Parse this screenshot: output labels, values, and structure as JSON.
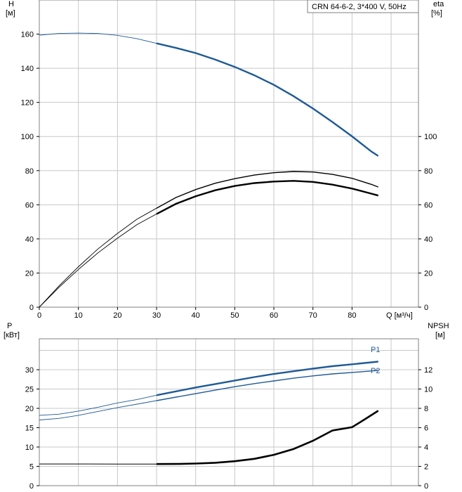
{
  "chart_data": [
    {
      "type": "line",
      "panel": "top",
      "title": "CRN 64-6-2, 3*400 V, 50Hz",
      "xlabel": "Q [м³/ч]",
      "ylabel_left": {
        "name": "H",
        "unit": "[м]"
      },
      "ylabel_right": {
        "name": "eta",
        "unit": "[%]"
      },
      "xlim": [
        0,
        97
      ],
      "ylim_left": [
        0,
        180
      ],
      "ylim_right": [
        0,
        180
      ],
      "x_ticks": [
        "0",
        "10",
        "20",
        "30",
        "40",
        "50",
        "60",
        "70",
        "80"
      ],
      "y_ticks_left": [
        "0",
        "20",
        "40",
        "60",
        "80",
        "100",
        "120",
        "140",
        "160"
      ],
      "y_ticks_right": [
        "0",
        "20",
        "40",
        "60",
        "80",
        "100"
      ],
      "grid": true,
      "series": [
        {
          "role": "H",
          "axis": "left",
          "color": "#1f5a96",
          "points": [
            [
              0,
              159.4
            ],
            [
              5,
              160.4
            ],
            [
              10,
              160.6
            ],
            [
              15,
              160.4
            ],
            [
              20,
              159.3
            ],
            [
              25,
              157.3
            ],
            [
              30,
              154.6
            ],
            [
              35,
              151.9
            ],
            [
              40,
              148.9
            ],
            [
              45,
              145.1
            ],
            [
              50,
              140.8
            ],
            [
              55,
              135.9
            ],
            [
              60,
              130.3
            ],
            [
              65,
              123.7
            ],
            [
              70,
              116.4
            ],
            [
              75,
              108.5
            ],
            [
              80,
              100.1
            ],
            [
              85,
              91.1
            ],
            [
              86.7,
              88.6
            ]
          ]
        },
        {
          "role": "eta-total",
          "axis": "right",
          "color": "#000000",
          "points": [
            [
              0,
              0
            ],
            [
              5,
              11.5
            ],
            [
              10,
              22.1
            ],
            [
              15,
              31.8
            ],
            [
              20,
              40.4
            ],
            [
              25,
              48.4
            ],
            [
              30,
              54.6
            ],
            [
              35,
              60.6
            ],
            [
              40,
              65.0
            ],
            [
              45,
              68.5
            ],
            [
              50,
              71.0
            ],
            [
              55,
              72.7
            ],
            [
              60,
              73.6
            ],
            [
              65,
              74.0
            ],
            [
              70,
              73.4
            ],
            [
              75,
              71.8
            ],
            [
              80,
              69.5
            ],
            [
              85,
              66.5
            ],
            [
              86.7,
              65.4
            ]
          ]
        },
        {
          "role": "eta-hydraulic",
          "axis": "right",
          "color": "#000000",
          "points": [
            [
              0,
              0
            ],
            [
              5,
              12.3
            ],
            [
              10,
              23.7
            ],
            [
              15,
              34.1
            ],
            [
              20,
              43.2
            ],
            [
              25,
              51.6
            ],
            [
              30,
              58.0
            ],
            [
              35,
              64.3
            ],
            [
              40,
              68.9
            ],
            [
              45,
              72.6
            ],
            [
              50,
              75.3
            ],
            [
              55,
              77.4
            ],
            [
              60,
              78.8
            ],
            [
              65,
              79.5
            ],
            [
              70,
              79.2
            ],
            [
              75,
              77.8
            ],
            [
              80,
              75.5
            ],
            [
              85,
              71.9
            ],
            [
              86.7,
              70.4
            ]
          ]
        }
      ]
    },
    {
      "type": "line",
      "panel": "bottom",
      "ylabel_left": {
        "name": "P",
        "unit": "[кВт]"
      },
      "ylabel_right": {
        "name": "NPSH",
        "unit": "[м]"
      },
      "xlim": [
        0,
        97
      ],
      "ylim_left": [
        0,
        38
      ],
      "ylim_right": [
        0,
        15.2
      ],
      "y_ticks_left": [
        "0",
        "5",
        "10",
        "15",
        "20",
        "25",
        "30"
      ],
      "y_ticks_right": [
        "0",
        "2",
        "4",
        "6",
        "8",
        "10",
        "12"
      ],
      "grid": true,
      "series": [
        {
          "name": "P1",
          "axis": "left",
          "color": "#1f5a96",
          "points": [
            [
              0,
              18.2
            ],
            [
              5,
              18.5
            ],
            [
              10,
              19.3
            ],
            [
              15,
              20.3
            ],
            [
              20,
              21.4
            ],
            [
              25,
              22.3
            ],
            [
              30,
              23.4
            ],
            [
              35,
              24.4
            ],
            [
              40,
              25.4
            ],
            [
              45,
              26.3
            ],
            [
              50,
              27.2
            ],
            [
              55,
              28.1
            ],
            [
              60,
              28.9
            ],
            [
              65,
              29.6
            ],
            [
              70,
              30.3
            ],
            [
              75,
              30.9
            ],
            [
              80,
              31.4
            ],
            [
              86.7,
              32.1
            ]
          ]
        },
        {
          "name": "P2",
          "axis": "left",
          "color": "#1f5a96",
          "points": [
            [
              0,
              17.0
            ],
            [
              5,
              17.4
            ],
            [
              10,
              18.2
            ],
            [
              15,
              19.2
            ],
            [
              20,
              20.2
            ],
            [
              25,
              21.1
            ],
            [
              30,
              22.0
            ],
            [
              35,
              22.9
            ],
            [
              40,
              23.8
            ],
            [
              45,
              24.7
            ],
            [
              50,
              25.6
            ],
            [
              55,
              26.4
            ],
            [
              60,
              27.1
            ],
            [
              65,
              27.8
            ],
            [
              70,
              28.4
            ],
            [
              75,
              28.9
            ],
            [
              80,
              29.3
            ],
            [
              86.7,
              29.8
            ]
          ]
        },
        {
          "role": "NPSH",
          "axis": "right",
          "color": "#000000",
          "points": [
            [
              0,
              2.25
            ],
            [
              10,
              2.25
            ],
            [
              20,
              2.24
            ],
            [
              30,
              2.24
            ],
            [
              35,
              2.25
            ],
            [
              40,
              2.29
            ],
            [
              45,
              2.37
            ],
            [
              50,
              2.53
            ],
            [
              55,
              2.78
            ],
            [
              60,
              3.19
            ],
            [
              65,
              3.79
            ],
            [
              70,
              4.65
            ],
            [
              75,
              5.71
            ],
            [
              80,
              6.05
            ],
            [
              83,
              6.8
            ],
            [
              86.7,
              7.75
            ]
          ]
        }
      ]
    }
  ]
}
